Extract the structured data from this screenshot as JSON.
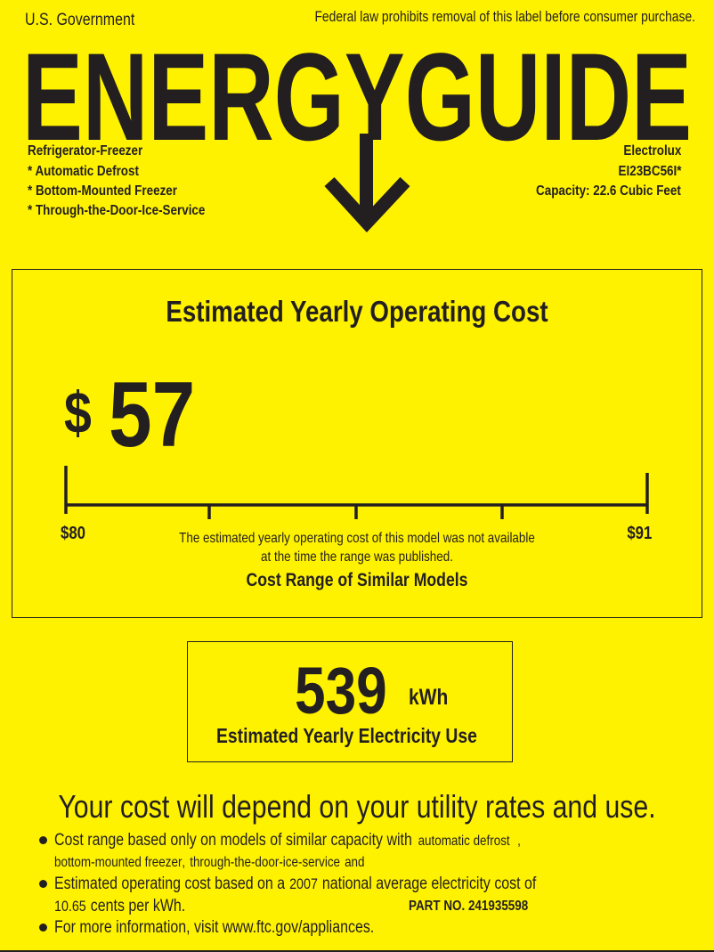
{
  "header": {
    "left": "U.S. Government",
    "right": "Federal law prohibits removal of this label before consumer purchase.",
    "logo_text": "ENERGYGUIDE"
  },
  "product": {
    "type": "Refrigerator-Freezer",
    "features": [
      "* Automatic Defrost",
      "* Bottom-Mounted Freezer",
      "* Through-the-Door-Ice-Service"
    ],
    "brand": "Electrolux",
    "model": "EI23BC56I*",
    "capacity": "Capacity: 22.6 Cubic Feet"
  },
  "cost": {
    "title": "Estimated Yearly Operating Cost",
    "currency": "$",
    "value": "57",
    "range_min": "$80",
    "range_max": "$91",
    "note_line1": "The estimated yearly operating cost of this model was not available",
    "note_line2": "at the time the range was published.",
    "range_label": "Cost Range of Similar Models"
  },
  "electricity": {
    "value": "539",
    "unit": "kWh",
    "label": "Estimated Yearly Electricity Use"
  },
  "footer": {
    "headline": "Your cost will depend on your utility rates and use.",
    "bullet1_a": "Cost range based only on models of similar capacity with",
    "bullet1_b": "automatic defrost",
    "bullet1_comma": ",",
    "bullet1_c": "bottom-mounted freezer",
    "bullet1_comma2": ",",
    "bullet1_d": "through-the-door-ice-service",
    "bullet1_and": "and",
    "bullet2_a": "Estimated operating cost based on a",
    "bullet2_year": "2007",
    "bullet2_b": "national average electricity cost of",
    "bullet2_rate": "10.65",
    "bullet2_c": "cents per kWh.",
    "part_no": "PART NO. 241935598",
    "bullet3": "For more information, visit www.ftc.gov/appliances."
  },
  "colors": {
    "background": "#fff200",
    "ink": "#231f20"
  }
}
